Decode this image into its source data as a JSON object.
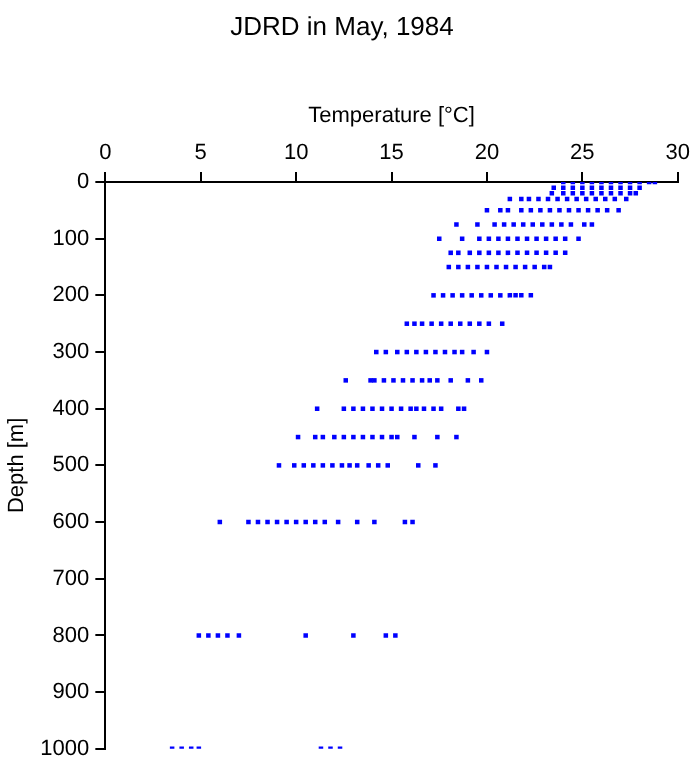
{
  "chart_data": {
    "type": "scatter",
    "title": "JDRD in May, 1984",
    "xlabel": "Temperature [°C]",
    "ylabel": "Depth [m]",
    "x": [
      24,
      24.5,
      25,
      25.5,
      26,
      26.5,
      27,
      27.5,
      28,
      28.5,
      28.8,
      23.5,
      24,
      24.5,
      25,
      25.5,
      26,
      26.5,
      27,
      27.5,
      28,
      23.4,
      24,
      24.5,
      25,
      25.5,
      26,
      26.5,
      27,
      27.5,
      27.8,
      21.2,
      21.8,
      22.2,
      22.7,
      23.2,
      23.7,
      24.2,
      24.7,
      25.2,
      25.7,
      26.2,
      26.7,
      27.3,
      20.0,
      20.7,
      21.1,
      21.8,
      22.3,
      22.8,
      23.3,
      23.8,
      24.3,
      24.8,
      25.3,
      25.8,
      26.3,
      26.9,
      18.4,
      19.5,
      20.4,
      20.9,
      21.4,
      21.9,
      22.4,
      22.9,
      23.4,
      23.9,
      24.4,
      25.1,
      25.5,
      17.5,
      18.7,
      19.6,
      20.1,
      20.6,
      21.1,
      21.6,
      22.1,
      22.6,
      23.1,
      23.6,
      24.1,
      24.8,
      18.1,
      18.5,
      19.1,
      19.6,
      20.1,
      20.6,
      21.1,
      21.6,
      22.1,
      22.6,
      23.1,
      23.6,
      24.1,
      18.0,
      18.5,
      19.0,
      19.5,
      20.0,
      20.5,
      21.0,
      21.5,
      22.0,
      22.5,
      23.0,
      23.3,
      17.2,
      17.7,
      18.2,
      18.7,
      19.2,
      19.7,
      20.2,
      20.7,
      21.2,
      21.5,
      21.8,
      22.3,
      15.8,
      16.2,
      16.6,
      17.1,
      17.6,
      18.1,
      18.6,
      19.1,
      19.6,
      20.1,
      20.8,
      14.2,
      14.7,
      15.3,
      15.8,
      16.3,
      16.8,
      17.3,
      17.8,
      18.3,
      18.7,
      19.3,
      20.0,
      12.6,
      13.9,
      14.1,
      14.6,
      15.1,
      15.6,
      16.1,
      16.6,
      17.0,
      17.4,
      18.1,
      19.0,
      19.7,
      11.1,
      12.5,
      13.0,
      13.5,
      14.0,
      14.5,
      15.0,
      15.5,
      16.0,
      16.3,
      16.7,
      17.2,
      17.6,
      18.5,
      18.8,
      10.1,
      11.0,
      11.4,
      12.0,
      12.5,
      13.0,
      13.5,
      14.0,
      14.5,
      15.0,
      15.3,
      16.2,
      17.4,
      18.4,
      9.1,
      9.9,
      10.4,
      10.9,
      11.4,
      11.9,
      12.4,
      12.8,
      13.2,
      13.8,
      14.3,
      14.8,
      16.4,
      17.3,
      6.0,
      7.5,
      8.0,
      8.5,
      9.0,
      9.5,
      10.0,
      10.5,
      11.0,
      11.5,
      12.2,
      13.2,
      14.1,
      15.7,
      16.1,
      4.9,
      5.4,
      5.9,
      6.4,
      7.0,
      10.5,
      13.0,
      14.7,
      15.2,
      3.5,
      4.0,
      4.5,
      4.9,
      11.3,
      11.8,
      12.3
    ],
    "values": [
      0,
      0,
      0,
      0,
      0,
      0,
      0,
      0,
      0,
      0,
      0,
      10,
      10,
      10,
      10,
      10,
      10,
      10,
      10,
      10,
      10,
      20,
      20,
      20,
      20,
      20,
      20,
      20,
      20,
      20,
      20,
      30,
      30,
      30,
      30,
      30,
      30,
      30,
      30,
      30,
      30,
      30,
      30,
      30,
      50,
      50,
      50,
      50,
      50,
      50,
      50,
      50,
      50,
      50,
      50,
      50,
      50,
      50,
      75,
      75,
      75,
      75,
      75,
      75,
      75,
      75,
      75,
      75,
      75,
      75,
      75,
      100,
      100,
      100,
      100,
      100,
      100,
      100,
      100,
      100,
      100,
      100,
      100,
      100,
      125,
      125,
      125,
      125,
      125,
      125,
      125,
      125,
      125,
      125,
      125,
      125,
      125,
      150,
      150,
      150,
      150,
      150,
      150,
      150,
      150,
      150,
      150,
      150,
      150,
      200,
      200,
      200,
      200,
      200,
      200,
      200,
      200,
      200,
      200,
      200,
      200,
      250,
      250,
      250,
      250,
      250,
      250,
      250,
      250,
      250,
      250,
      250,
      300,
      300,
      300,
      300,
      300,
      300,
      300,
      300,
      300,
      300,
      300,
      300,
      350,
      350,
      350,
      350,
      350,
      350,
      350,
      350,
      350,
      350,
      350,
      350,
      350,
      400,
      400,
      400,
      400,
      400,
      400,
      400,
      400,
      400,
      400,
      400,
      400,
      400,
      400,
      400,
      450,
      450,
      450,
      450,
      450,
      450,
      450,
      450,
      450,
      450,
      450,
      450,
      450,
      450,
      500,
      500,
      500,
      500,
      500,
      500,
      500,
      500,
      500,
      500,
      500,
      500,
      500,
      500,
      600,
      600,
      600,
      600,
      600,
      600,
      600,
      600,
      600,
      600,
      600,
      600,
      600,
      600,
      600,
      800,
      800,
      800,
      800,
      800,
      800,
      800,
      800,
      800,
      1000,
      1000,
      1000,
      1000,
      1000,
      1000,
      1000
    ],
    "color": "#0000ff",
    "marker": "square",
    "grid": false,
    "legend": false,
    "xlim": [
      0,
      30
    ],
    "xticks": [
      0,
      5,
      10,
      15,
      20,
      25,
      30
    ],
    "ylim": [
      1000,
      0
    ],
    "yticks": [
      0,
      100,
      200,
      300,
      400,
      500,
      600,
      700,
      800,
      900,
      1000
    ]
  }
}
